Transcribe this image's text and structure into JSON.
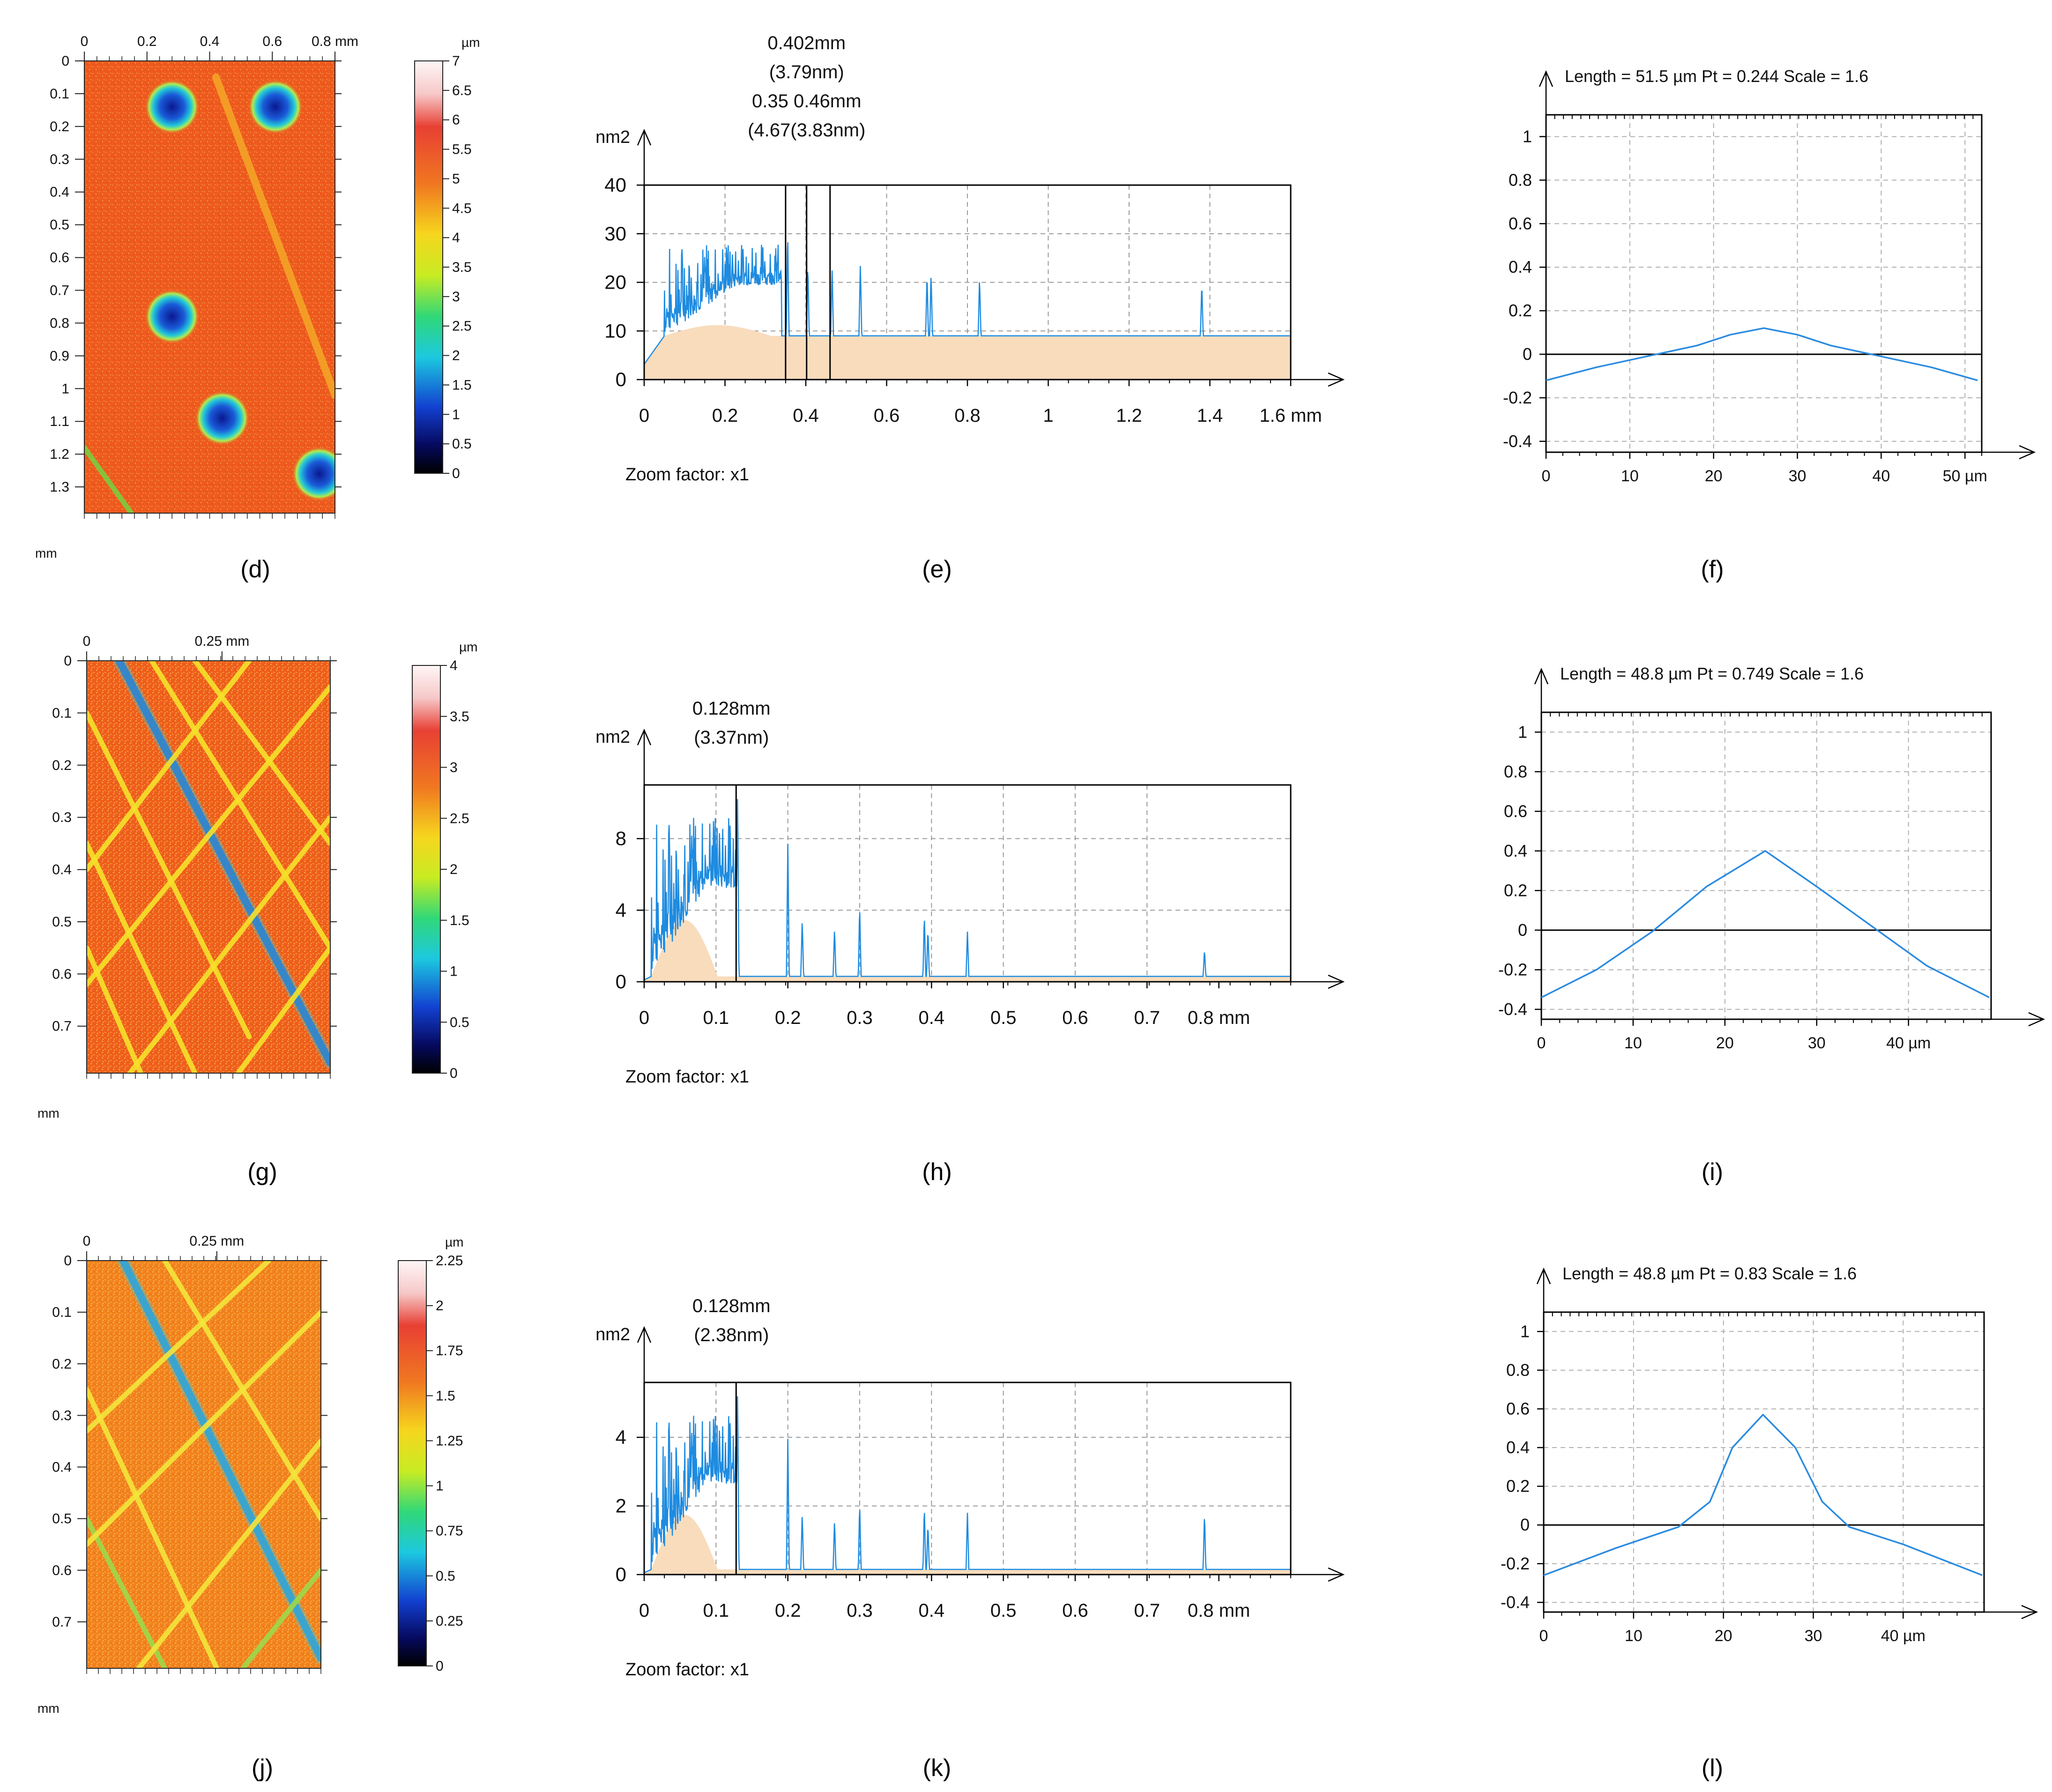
{
  "captions": [
    "(d)",
    "(e)",
    "(f)",
    "(g)",
    "(h)",
    "(i)",
    "(j)",
    "(k)",
    "(l)"
  ],
  "chart_data": [
    {
      "id": "d",
      "type": "heatmap",
      "x_ticks": [
        "0",
        "0.2",
        "0.4",
        "0.6",
        "0.8 mm"
      ],
      "y_ticks": [
        "0",
        "0.1",
        "0.2",
        "0.3",
        "0.4",
        "0.5",
        "0.6",
        "0.7",
        "0.8",
        "0.9",
        "1",
        "1.1",
        "1.2",
        "1.3"
      ],
      "y_unit": "mm",
      "colorbar_unit": "µm",
      "colorbar_ticks": [
        "7",
        "6.5",
        "6",
        "5.5",
        "5",
        "4.5",
        "4",
        "3.5",
        "3",
        "2.5",
        "2",
        "1.5",
        "1",
        "0.5",
        "0"
      ],
      "colorbar_range": [
        0,
        7
      ],
      "xlim": [
        0,
        0.8
      ],
      "ylim": [
        0,
        1.38
      ],
      "base_color": "#ee5a1e",
      "pits": [
        [
          0.28,
          0.14
        ],
        [
          0.61,
          0.14
        ],
        [
          0.28,
          0.78
        ],
        [
          0.44,
          1.09
        ],
        [
          0.75,
          1.26
        ]
      ],
      "grooves": [
        {
          "from": [
            0.42,
            0.05
          ],
          "to": [
            0.8,
            1.02
          ],
          "color": "#f4a426"
        },
        {
          "from": [
            0.0,
            1.18
          ],
          "to": [
            0.15,
            1.38
          ],
          "color": "#7ecc3c"
        }
      ]
    },
    {
      "id": "e",
      "type": "area",
      "ylabel": "nm2",
      "xlim": [
        0,
        1.6
      ],
      "ylim": [
        0,
        40
      ],
      "x_ticks": [
        "0",
        "0.2",
        "0.4",
        "0.6",
        "0.8",
        "1",
        "1.2",
        "1.4",
        "1.6 mm"
      ],
      "y_ticks": [
        "0",
        "10",
        "20",
        "30",
        "40"
      ],
      "annotations": [
        "0.402mm",
        "(3.79nm)",
        "0.35 0.46mm",
        "(4.67(3.83nm)"
      ],
      "markers": [
        0.35,
        0.402,
        0.46
      ],
      "footer": "Zoom factor: x1",
      "baseline": 9,
      "peaks": [
        [
          0.355,
          31
        ],
        [
          0.405,
          24
        ],
        [
          0.465,
          23
        ],
        [
          0.535,
          24
        ],
        [
          0.7,
          22
        ],
        [
          0.71,
          22
        ],
        [
          0.83,
          21
        ],
        [
          1.38,
          20
        ]
      ],
      "cluster": {
        "start": 0.05,
        "end": 0.34,
        "max": 28
      }
    },
    {
      "id": "f",
      "type": "line",
      "header": "Length = 51.5 µm  Pt = 0.244    Scale = 1.6",
      "xlim": [
        0,
        52
      ],
      "ylim": [
        -0.45,
        1.1
      ],
      "x_ticks": [
        "0",
        "10",
        "20",
        "30",
        "40",
        "50 µm"
      ],
      "y_ticks": [
        "1",
        "0.8",
        "0.6",
        "0.4",
        "0.2",
        "0",
        "-0.2",
        "-0.4"
      ],
      "x": [
        0,
        6,
        12,
        18,
        22,
        26,
        30,
        34,
        40,
        46,
        51.5
      ],
      "y": [
        -0.12,
        -0.06,
        -0.01,
        0.04,
        0.09,
        0.12,
        0.09,
        0.04,
        -0.01,
        -0.06,
        -0.12
      ]
    },
    {
      "id": "g",
      "type": "heatmap",
      "x_ticks": [
        "0",
        "0.25 mm"
      ],
      "y_ticks": [
        "0",
        "0.1",
        "0.2",
        "0.3",
        "0.4",
        "0.5",
        "0.6",
        "0.7"
      ],
      "y_unit": "mm",
      "colorbar_unit": "µm",
      "colorbar_ticks": [
        "4",
        "3.5",
        "3",
        "2.5",
        "2",
        "1.5",
        "1",
        "0.5",
        "0"
      ],
      "colorbar_range": [
        0,
        4
      ],
      "xlim": [
        0,
        0.45
      ],
      "ylim": [
        0,
        0.79
      ],
      "base_color": "#ef5f1c",
      "pits": [],
      "grooves": [
        {
          "from": [
            0.06,
            0.0
          ],
          "to": [
            0.45,
            0.77
          ],
          "color": "#1f5fd0"
        },
        {
          "from": [
            0.0,
            0.1
          ],
          "to": [
            0.3,
            0.72
          ],
          "color": "#f6e22a"
        },
        {
          "from": [
            0.12,
            0.0
          ],
          "to": [
            0.45,
            0.55
          ],
          "color": "#f6e22a"
        },
        {
          "from": [
            0.2,
            0.0
          ],
          "to": [
            0.45,
            0.35
          ],
          "color": "#f6e22a"
        },
        {
          "from": [
            0.0,
            0.35
          ],
          "to": [
            0.2,
            0.79
          ],
          "color": "#f6e22a"
        },
        {
          "from": [
            0.0,
            0.55
          ],
          "to": [
            0.1,
            0.79
          ],
          "color": "#f6e22a"
        },
        {
          "from": [
            0.45,
            0.05
          ],
          "to": [
            0.0,
            0.62
          ],
          "color": "#f6e22a"
        },
        {
          "from": [
            0.45,
            0.3
          ],
          "to": [
            0.08,
            0.79
          ],
          "color": "#f6e22a"
        },
        {
          "from": [
            0.3,
            0.0
          ],
          "to": [
            0.0,
            0.4
          ],
          "color": "#f6e22a"
        },
        {
          "from": [
            0.45,
            0.55
          ],
          "to": [
            0.28,
            0.79
          ],
          "color": "#f6e22a"
        }
      ]
    },
    {
      "id": "h",
      "type": "area",
      "ylabel": "nm2",
      "xlim": [
        0,
        0.9
      ],
      "ylim": [
        0,
        11
      ],
      "x_ticks": [
        "0",
        "0.1",
        "0.2",
        "0.3",
        "0.4",
        "0.5",
        "0.6",
        "0.7",
        "0.8 mm"
      ],
      "y_ticks": [
        "0",
        "4",
        "8"
      ],
      "annotations": [
        "0.128mm",
        "(3.37nm)"
      ],
      "markers": [
        0.128
      ],
      "footer": "Zoom factor: x1",
      "baseline": 0.3,
      "peaks": [
        [
          0.13,
          11
        ],
        [
          0.2,
          8
        ],
        [
          0.22,
          3.5
        ],
        [
          0.265,
          3
        ],
        [
          0.3,
          4.3
        ],
        [
          0.39,
          3.8
        ],
        [
          0.395,
          3
        ],
        [
          0.45,
          2.8
        ],
        [
          0.78,
          1.8
        ]
      ],
      "cluster": {
        "start": 0.01,
        "end": 0.13,
        "max": 9.3
      }
    },
    {
      "id": "i",
      "type": "line",
      "header": "Length = 48.8 µm  Pt = 0.749    Scale = 1.6",
      "xlim": [
        0,
        49
      ],
      "ylim": [
        -0.45,
        1.1
      ],
      "x_ticks": [
        "0",
        "10",
        "20",
        "30",
        "40 µm"
      ],
      "y_ticks": [
        "1",
        "0.8",
        "0.6",
        "0.4",
        "0.2",
        "0",
        "-0.2",
        "-0.4"
      ],
      "x": [
        0,
        6,
        12,
        18,
        24.4,
        30,
        36,
        42,
        48.8
      ],
      "y": [
        -0.34,
        -0.2,
        -0.01,
        0.22,
        0.4,
        0.22,
        0.02,
        -0.18,
        -0.34
      ]
    },
    {
      "id": "j",
      "type": "heatmap",
      "x_ticks": [
        "0",
        "0.25 mm"
      ],
      "y_ticks": [
        "0",
        "0.1",
        "0.2",
        "0.3",
        "0.4",
        "0.5",
        "0.6",
        "0.7"
      ],
      "y_unit": "mm",
      "colorbar_unit": "µm",
      "colorbar_ticks": [
        "2.25",
        "2",
        "1.75",
        "1.5",
        "1.25",
        "1",
        "0.75",
        "0.5",
        "0.25",
        "0"
      ],
      "colorbar_range": [
        0,
        2.25
      ],
      "xlim": [
        0,
        0.45
      ],
      "ylim": [
        0,
        0.79
      ],
      "base_color": "#f2821e",
      "pits": [],
      "grooves": [
        {
          "from": [
            0.07,
            0.0
          ],
          "to": [
            0.45,
            0.77
          ],
          "color": "#2a8fd8"
        },
        {
          "from": [
            0.0,
            0.25
          ],
          "to": [
            0.25,
            0.79
          ],
          "color": "#f4e63a"
        },
        {
          "from": [
            0.15,
            0.0
          ],
          "to": [
            0.45,
            0.5
          ],
          "color": "#f4e63a"
        },
        {
          "from": [
            0.0,
            0.5
          ],
          "to": [
            0.15,
            0.79
          ],
          "color": "#9ed94a"
        },
        {
          "from": [
            0.45,
            0.1
          ],
          "to": [
            0.0,
            0.55
          ],
          "color": "#f4e63a"
        },
        {
          "from": [
            0.45,
            0.35
          ],
          "to": [
            0.1,
            0.79
          ],
          "color": "#f4e63a"
        },
        {
          "from": [
            0.35,
            0.0
          ],
          "to": [
            0.0,
            0.33
          ],
          "color": "#f4e63a"
        },
        {
          "from": [
            0.45,
            0.6
          ],
          "to": [
            0.3,
            0.79
          ],
          "color": "#9ed94a"
        }
      ]
    },
    {
      "id": "k",
      "type": "area",
      "ylabel": "nm2",
      "xlim": [
        0,
        0.9
      ],
      "ylim": [
        0,
        5.6
      ],
      "x_ticks": [
        "0",
        "0.1",
        "0.2",
        "0.3",
        "0.4",
        "0.5",
        "0.6",
        "0.7",
        "0.8 mm"
      ],
      "y_ticks": [
        "0",
        "2",
        "4"
      ],
      "annotations": [
        "0.128mm",
        "(2.38nm)"
      ],
      "markers": [
        0.128
      ],
      "footer": "Zoom factor: x1",
      "baseline": 0.15,
      "peaks": [
        [
          0.13,
          5.6
        ],
        [
          0.2,
          4.1
        ],
        [
          0.22,
          1.8
        ],
        [
          0.265,
          1.6
        ],
        [
          0.3,
          2.1
        ],
        [
          0.39,
          2.0
        ],
        [
          0.395,
          1.5
        ],
        [
          0.45,
          1.8
        ],
        [
          0.78,
          1.8
        ]
      ],
      "cluster": {
        "start": 0.01,
        "end": 0.13,
        "max": 4.7
      }
    },
    {
      "id": "l",
      "type": "line",
      "header": "Length = 48.8 µm  Pt = 0.83    Scale = 1.6",
      "xlim": [
        0,
        49
      ],
      "ylim": [
        -0.45,
        1.1
      ],
      "x_ticks": [
        "0",
        "10",
        "20",
        "30",
        "40 µm"
      ],
      "y_ticks": [
        "1",
        "0.8",
        "0.6",
        "0.4",
        "0.2",
        "0",
        "-0.2",
        "-0.4"
      ],
      "x": [
        0,
        8,
        15,
        18.5,
        21,
        24.4,
        28,
        31,
        34,
        40,
        48.8
      ],
      "y": [
        -0.26,
        -0.12,
        -0.01,
        0.12,
        0.4,
        0.57,
        0.4,
        0.12,
        -0.01,
        -0.1,
        -0.26
      ]
    }
  ]
}
